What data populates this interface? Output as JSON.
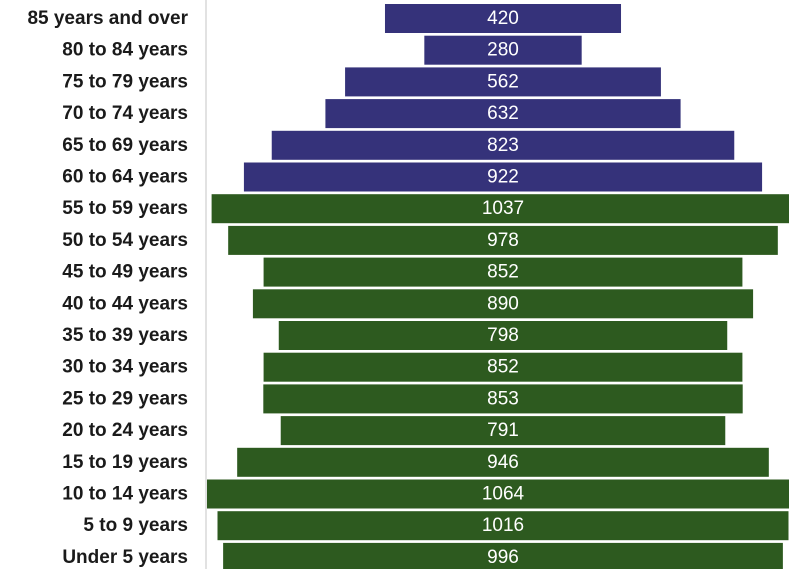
{
  "chart_data": {
    "type": "bar",
    "orientation": "horizontal",
    "layout": "population-pyramid (centered bars)",
    "categories": [
      "85 years and over",
      "80 to 84 years",
      "75 to 79 years",
      "70 to 74 years",
      "65 to 69 years",
      "60 to 64 years",
      "55 to 59 years",
      "50 to 54 years",
      "45 to 49 years",
      "40 to 44 years",
      "35 to 39 years",
      "30 to 34 years",
      "25 to 29 years",
      "20 to 24 years",
      "15 to 19 years",
      "10 to 14 years",
      "5 to 9 years",
      "Under 5 years"
    ],
    "values": [
      420,
      280,
      562,
      632,
      823,
      922,
      1037,
      978,
      852,
      890,
      798,
      852,
      853,
      791,
      946,
      1064,
      1016,
      996
    ],
    "bar_colors": [
      "#35327a",
      "#35327a",
      "#35327a",
      "#35327a",
      "#35327a",
      "#35327a",
      "#2d5a1f",
      "#2d5a1f",
      "#2d5a1f",
      "#2d5a1f",
      "#2d5a1f",
      "#2d5a1f",
      "#2d5a1f",
      "#2d5a1f",
      "#2d5a1f",
      "#2d5a1f",
      "#2d5a1f",
      "#2d5a1f"
    ],
    "value_label_color": "#ffffff",
    "axis_line_color": "#d9d9d9",
    "data_labels": true,
    "grid": false,
    "legend": "none",
    "title": "",
    "xlabel": "",
    "ylabel": ""
  }
}
